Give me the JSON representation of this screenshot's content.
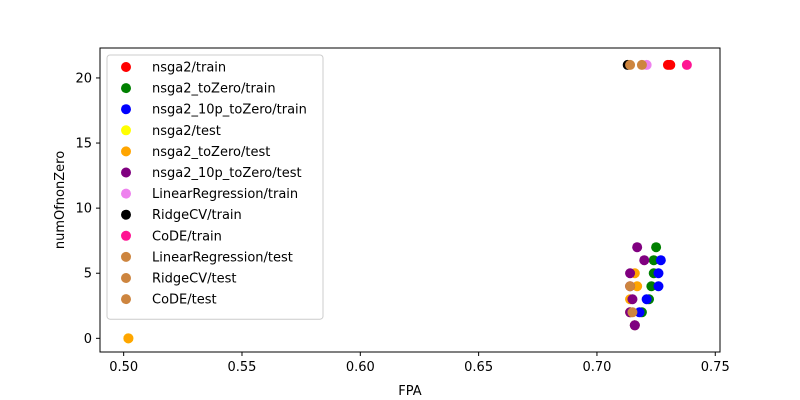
{
  "chart_data": {
    "type": "scatter",
    "xlabel": "FPA",
    "ylabel": "numOfnonZero",
    "xlim": [
      0.49,
      0.752
    ],
    "ylim": [
      -1.05,
      22.3
    ],
    "xticks": [
      0.5,
      0.55,
      0.6,
      0.65,
      0.7,
      0.75
    ],
    "xtick_labels": [
      "0.50",
      "0.55",
      "0.60",
      "0.65",
      "0.70",
      "0.75"
    ],
    "yticks": [
      0,
      5,
      10,
      15,
      20
    ],
    "ytick_labels": [
      "0",
      "5",
      "10",
      "15",
      "20"
    ],
    "grid": false,
    "legend_position": "upper-left",
    "series": [
      {
        "name": "nsga2/train",
        "color": "#ff0000",
        "points": [
          [
            0.73,
            21
          ],
          [
            0.731,
            21
          ]
        ]
      },
      {
        "name": "nsga2_toZero/train",
        "color": "#008000",
        "points": [
          [
            0.725,
            7
          ],
          [
            0.724,
            6
          ],
          [
            0.724,
            5
          ],
          [
            0.723,
            4
          ],
          [
            0.722,
            3
          ],
          [
            0.719,
            2
          ]
        ]
      },
      {
        "name": "nsga2_10p_toZero/train",
        "color": "#0000ff",
        "points": [
          [
            0.727,
            6
          ],
          [
            0.726,
            5
          ],
          [
            0.726,
            4
          ],
          [
            0.721,
            3
          ],
          [
            0.718,
            2
          ],
          [
            0.716,
            1
          ]
        ]
      },
      {
        "name": "nsga2/test",
        "color": "#ffff00",
        "points": [
          [
            0.502,
            0
          ]
        ]
      },
      {
        "name": "nsga2_toZero/test",
        "color": "#ffa500",
        "points": [
          [
            0.502,
            0
          ],
          [
            0.716,
            5
          ],
          [
            0.717,
            4
          ],
          [
            0.714,
            3
          ],
          [
            0.714,
            2
          ],
          [
            0.716,
            1
          ]
        ]
      },
      {
        "name": "nsga2_10p_toZero/test",
        "color": "#800080",
        "points": [
          [
            0.717,
            7
          ],
          [
            0.72,
            6
          ],
          [
            0.714,
            5
          ],
          [
            0.714,
            4
          ],
          [
            0.715,
            3
          ],
          [
            0.714,
            2
          ],
          [
            0.716,
            1
          ]
        ]
      },
      {
        "name": "LinearRegression/train",
        "color": "#ee82ee",
        "points": [
          [
            0.721,
            21
          ]
        ]
      },
      {
        "name": "RidgeCV/train",
        "color": "#000000",
        "points": [
          [
            0.713,
            21
          ]
        ]
      },
      {
        "name": "CoDE/train",
        "color": "#ff1493",
        "points": [
          [
            0.738,
            21
          ]
        ]
      },
      {
        "name": "LinearRegression/test",
        "color": "#cd853f",
        "points": [
          [
            0.714,
            21
          ]
        ]
      },
      {
        "name": "RidgeCV/test",
        "color": "#cd853f",
        "points": [
          [
            0.719,
            21
          ]
        ]
      },
      {
        "name": "CoDE/test",
        "color": "#cd853f",
        "points": [
          [
            0.714,
            4
          ],
          [
            0.715,
            2
          ]
        ]
      }
    ]
  }
}
